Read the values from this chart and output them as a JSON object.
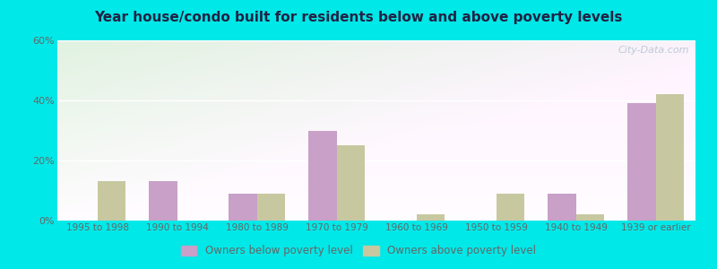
{
  "title": "Year house/condo built for residents below and above poverty levels",
  "categories": [
    "1995 to 1998",
    "1990 to 1994",
    "1980 to 1989",
    "1970 to 1979",
    "1960 to 1969",
    "1950 to 1959",
    "1940 to 1949",
    "1939 or earlier"
  ],
  "below_poverty": [
    0,
    13,
    9,
    30,
    0,
    0,
    9,
    39
  ],
  "above_poverty": [
    13,
    0,
    9,
    25,
    2,
    9,
    2,
    42
  ],
  "below_color": "#c8a0c8",
  "above_color": "#c8c8a0",
  "ylim": [
    0,
    60
  ],
  "yticks": [
    0,
    20,
    40,
    60
  ],
  "ytick_labels": [
    "0%",
    "20%",
    "40%",
    "60%"
  ],
  "outer_bg": "#00e8e8",
  "bar_width": 0.35,
  "legend_below_label": "Owners below poverty level",
  "legend_above_label": "Owners above poverty level",
  "watermark": "City-Data.com",
  "title_color": "#222244",
  "tick_color": "#666666"
}
